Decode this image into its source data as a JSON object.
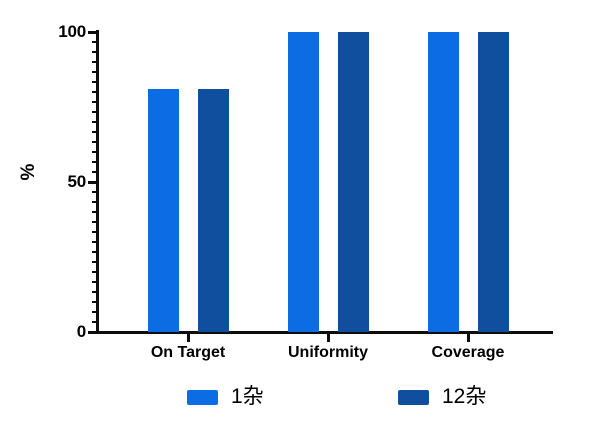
{
  "chart_data": {
    "type": "bar",
    "title": "",
    "categories": [
      "On Target",
      "Uniformity",
      "Coverage"
    ],
    "series": [
      {
        "name": "1杂",
        "color": "#0b6ce4",
        "values": [
          81,
          100,
          100
        ]
      },
      {
        "name": "12杂",
        "color": "#0f4f9e",
        "values": [
          81,
          100,
          100
        ]
      }
    ],
    "xlabel": "",
    "ylabel": "%",
    "ylim": [
      0,
      100
    ],
    "yticks": [
      0,
      50,
      100
    ],
    "grid": false,
    "legend_position": "bottom",
    "axis_color": "#0d0d0d",
    "background_color": "#ffffff"
  }
}
